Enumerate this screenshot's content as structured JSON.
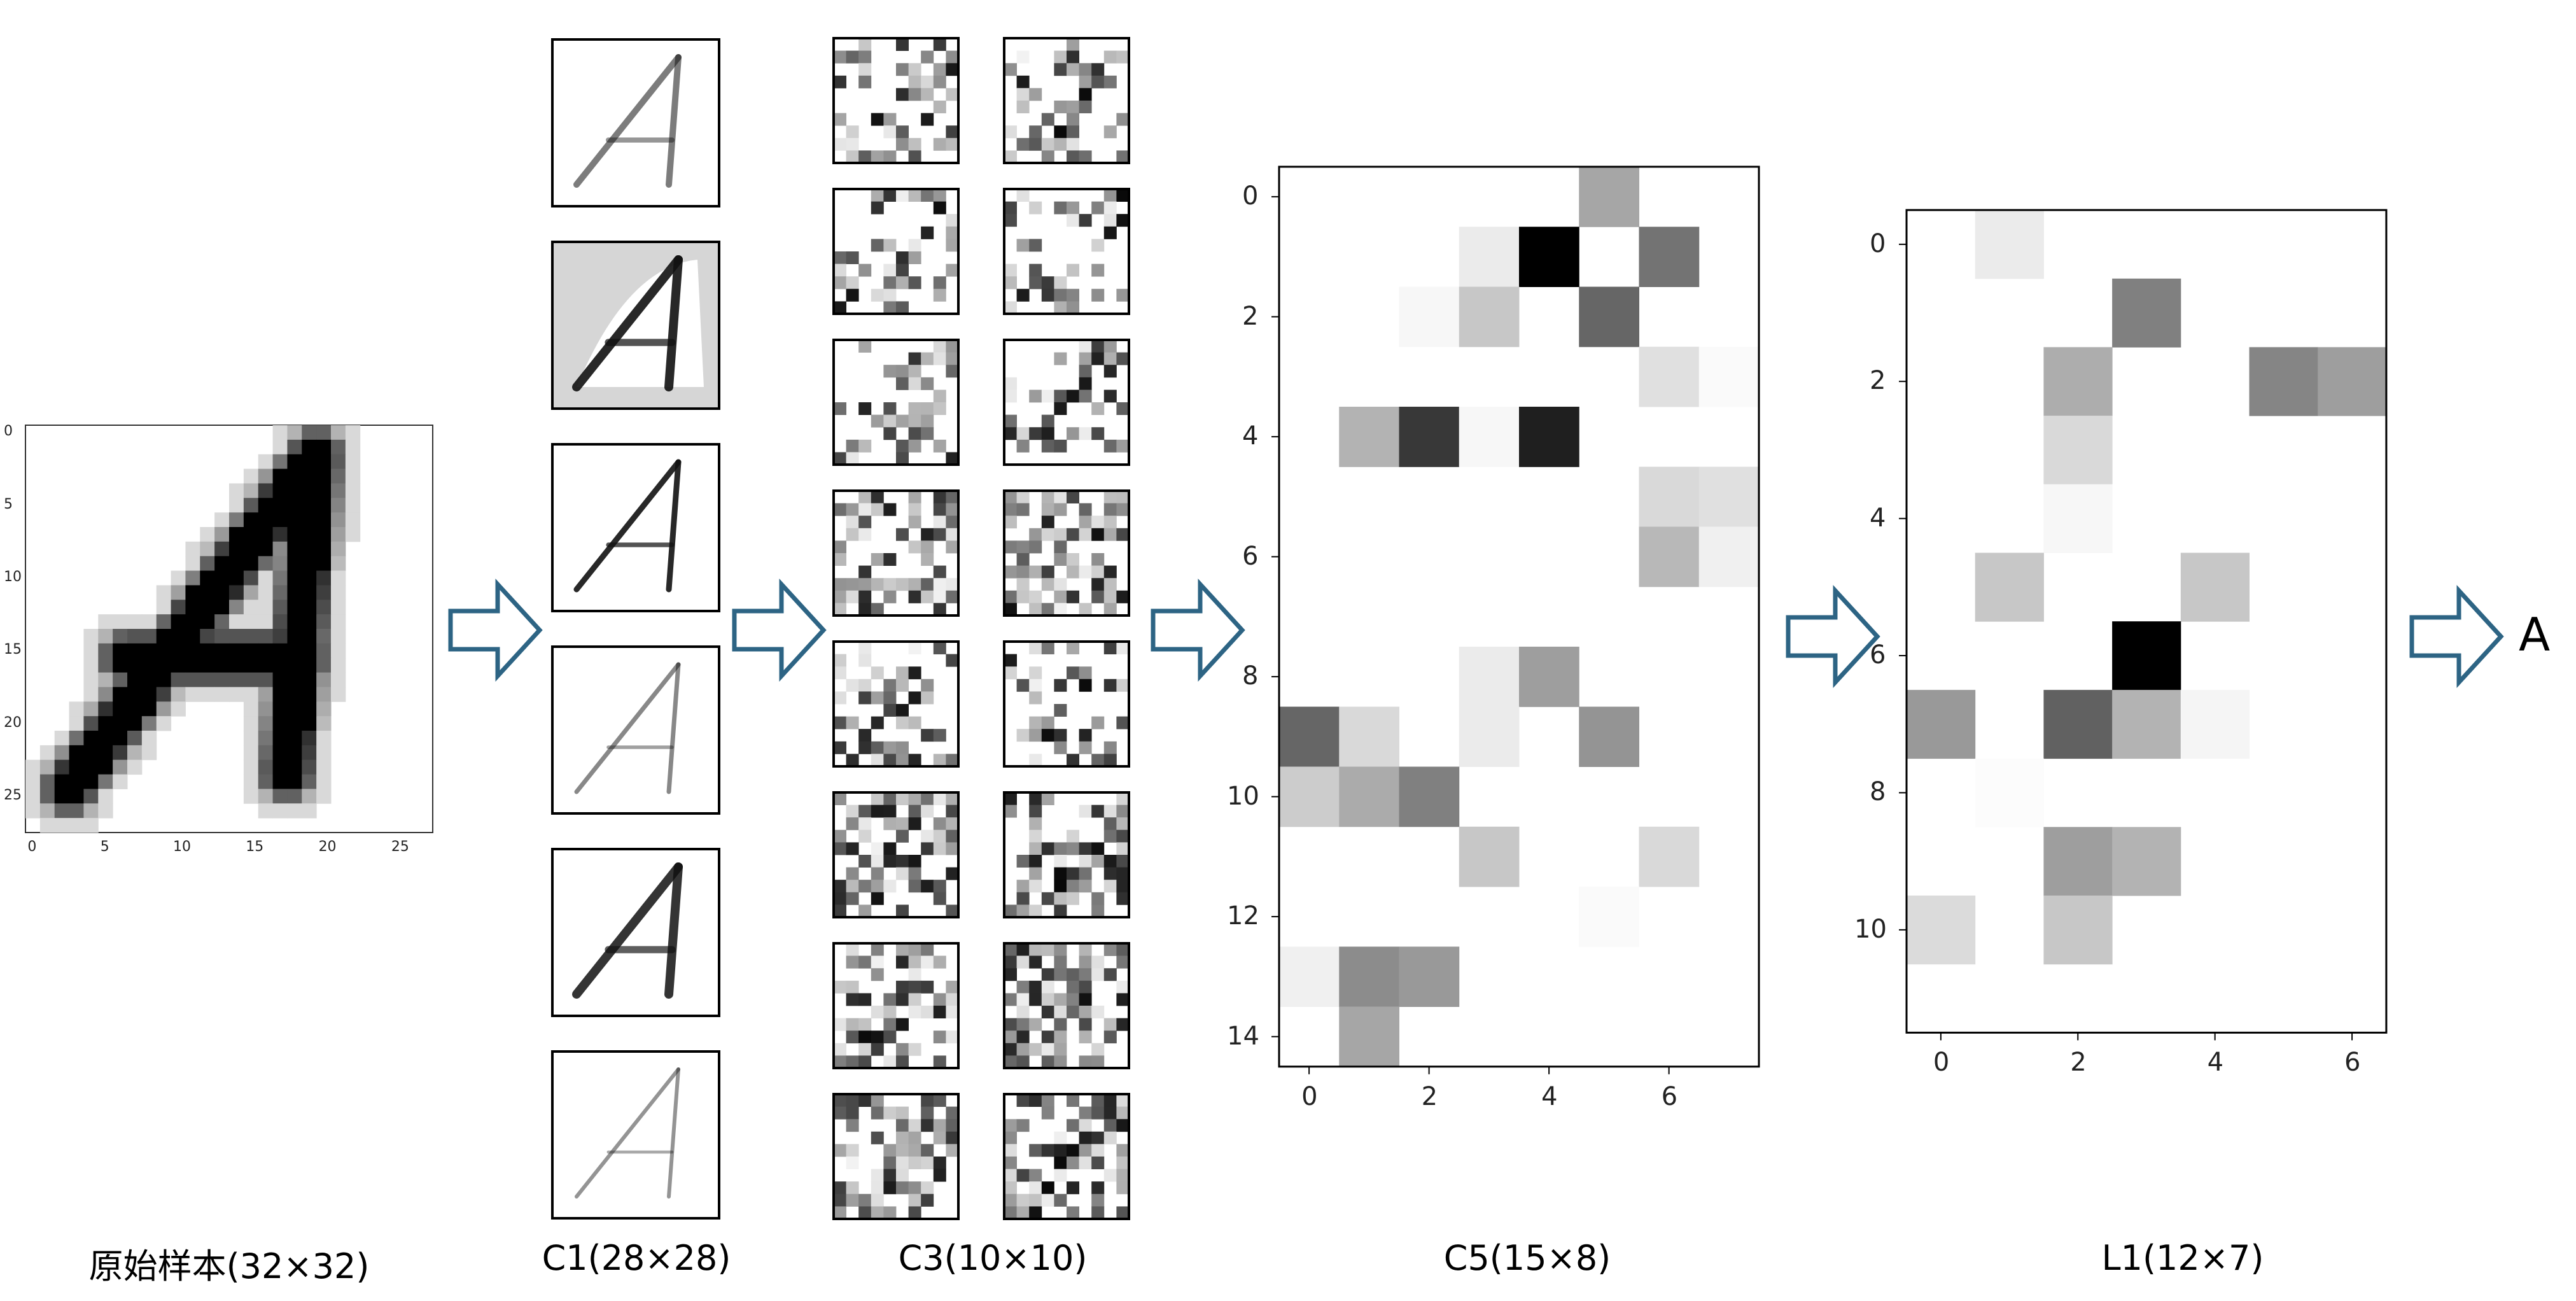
{
  "captions": {
    "input": "原始样本(32×32)",
    "c1": "C1(28×28)",
    "c3": "C3(10×10)",
    "c5": "C5(15×8)",
    "l1": "L1(12×7)",
    "output": "A"
  },
  "input_axes": {
    "x_ticks": [
      "0",
      "5",
      "10",
      "15",
      "20",
      "25"
    ],
    "y_ticks": [
      "0",
      "5",
      "10",
      "15",
      "20",
      "25"
    ]
  },
  "c5_axes": {
    "x_ticks": [
      "0",
      "2",
      "4",
      "6"
    ],
    "y_ticks": [
      "0",
      "2",
      "4",
      "6",
      "8",
      "10",
      "12",
      "14"
    ]
  },
  "l1_axes": {
    "x_ticks": [
      "0",
      "2",
      "4",
      "6"
    ],
    "y_ticks": [
      "0",
      "2",
      "4",
      "6",
      "8",
      "10"
    ]
  },
  "colors": {
    "arrow": "#2d6484",
    "frame": "#000000"
  },
  "c5_matrix": [
    [
      0,
      0,
      0,
      0,
      0,
      0.35,
      0,
      0
    ],
    [
      0,
      0,
      0,
      0.08,
      1,
      0,
      0.55,
      0
    ],
    [
      0,
      0,
      0.03,
      0.22,
      0,
      0.6,
      0,
      0
    ],
    [
      0,
      0,
      0,
      0,
      0,
      0,
      0.12,
      0.02
    ],
    [
      0,
      0.3,
      0.78,
      0.03,
      0.88,
      0,
      0,
      0
    ],
    [
      0,
      0,
      0,
      0,
      0,
      0,
      0.15,
      0.12
    ],
    [
      0,
      0,
      0,
      0,
      0,
      0,
      0.28,
      0.06
    ],
    [
      0,
      0,
      0,
      0,
      0,
      0,
      0,
      0
    ],
    [
      0,
      0,
      0,
      0.08,
      0.38,
      0,
      0,
      0
    ],
    [
      0.6,
      0.15,
      0,
      0.08,
      0,
      0.42,
      0,
      0
    ],
    [
      0.2,
      0.33,
      0.5,
      0,
      0,
      0,
      0,
      0
    ],
    [
      0,
      0,
      0,
      0.22,
      0,
      0,
      0.15,
      0
    ],
    [
      0,
      0,
      0,
      0,
      0,
      0.02,
      0,
      0
    ],
    [
      0.06,
      0.45,
      0.4,
      0,
      0,
      0,
      0,
      0
    ],
    [
      0,
      0.35,
      0,
      0,
      0,
      0,
      0,
      0
    ]
  ],
  "l1_matrix": [
    [
      0,
      0.08,
      0,
      0,
      0,
      0,
      0
    ],
    [
      0,
      0,
      0,
      0.5,
      0,
      0,
      0
    ],
    [
      0,
      0,
      0.32,
      0,
      0,
      0.48,
      0.38
    ],
    [
      0,
      0,
      0.15,
      0,
      0,
      0,
      0
    ],
    [
      0,
      0,
      0.03,
      0,
      0,
      0,
      0
    ],
    [
      0,
      0.22,
      0,
      0,
      0.22,
      0,
      0
    ],
    [
      0,
      0,
      0,
      1,
      0,
      0,
      0
    ],
    [
      0.4,
      0,
      0.62,
      0.3,
      0.04,
      0,
      0
    ],
    [
      0,
      0.01,
      0,
      0,
      0,
      0,
      0
    ],
    [
      0,
      0,
      0.38,
      0.3,
      0,
      0,
      0
    ],
    [
      0.14,
      0,
      0.22,
      0,
      0,
      0,
      0
    ],
    [
      0,
      0,
      0,
      0,
      0,
      0,
      0
    ]
  ]
}
